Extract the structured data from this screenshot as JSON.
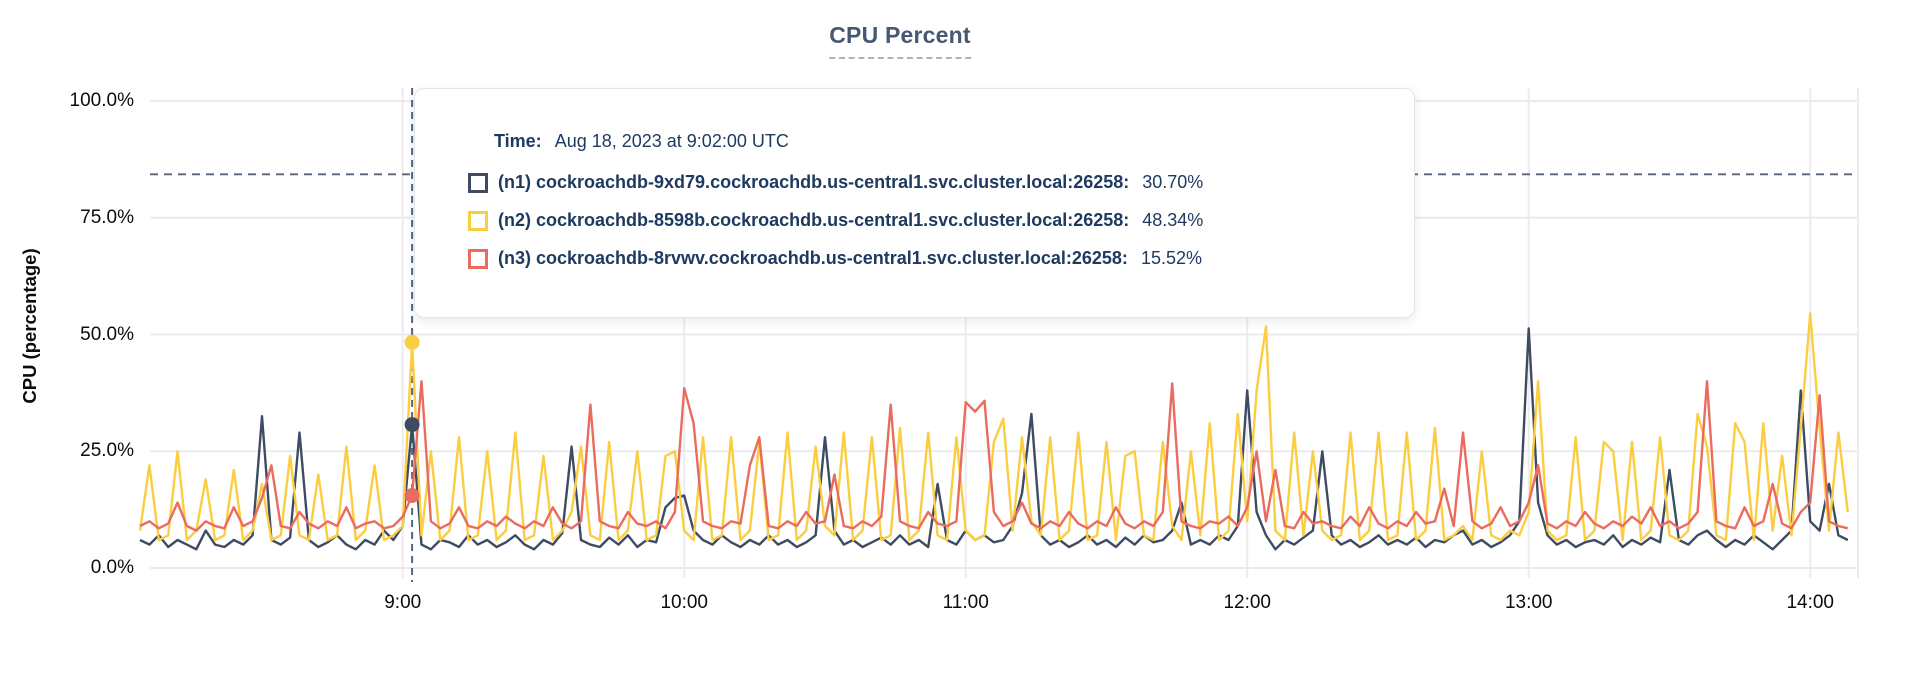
{
  "header": {
    "title": "CPU Percent"
  },
  "y_axis": {
    "title": "CPU (percentage)"
  },
  "tooltip": {
    "time_label": "Time:",
    "time_value": "Aug 18, 2023 at 9:02:00 UTC",
    "rows": [
      {
        "name": "(n1) cockroachdb-9xd79.cockroachdb.us-central1.svc.cluster.local:26258:",
        "value": "30.70%",
        "color": "#3e4c63"
      },
      {
        "name": "(n2) cockroachdb-8598b.cockroachdb.us-central1.svc.cluster.local:26258:",
        "value": "48.34%",
        "color": "#fbce42"
      },
      {
        "name": "(n3) cockroachdb-8rvwv.cockroachdb.us-central1.svc.cluster.local:26258:",
        "value": "15.52%",
        "color": "#ea6c5f"
      }
    ]
  },
  "chart_data": {
    "type": "line",
    "title": "CPU Percent",
    "xlabel": "",
    "ylabel": "CPU (percentage)",
    "ylim": [
      0,
      100
    ],
    "grid": true,
    "x_start_minutes": 484,
    "x_step_minutes": 2,
    "x_ticks": [
      {
        "minutes": 540,
        "label": "9:00"
      },
      {
        "minutes": 600,
        "label": "10:00"
      },
      {
        "minutes": 660,
        "label": "11:00"
      },
      {
        "minutes": 720,
        "label": "12:00"
      },
      {
        "minutes": 780,
        "label": "13:00"
      },
      {
        "minutes": 840,
        "label": "14:00"
      }
    ],
    "y_ticks": [
      {
        "value": 100,
        "label": "100.0%"
      },
      {
        "value": 75,
        "label": "75.0%"
      },
      {
        "value": 50,
        "label": "50.0%"
      },
      {
        "value": 25,
        "label": "25.0%"
      },
      {
        "value": 0,
        "label": "0.0%"
      }
    ],
    "threshold_dashed_line_pct": 84.3,
    "hover": {
      "minutes": 542,
      "time": "Aug 18, 2023 at 9:02:00 UTC",
      "values": [
        30.7,
        48.34,
        15.52
      ]
    },
    "series": [
      {
        "name": "(n1) cockroachdb-9xd79.cockroachdb.us-central1.svc.cluster.local:26258",
        "color": "#3e4c63",
        "values": [
          6,
          5,
          7,
          4.5,
          6,
          5,
          4,
          8,
          5,
          4.5,
          6,
          5,
          7,
          32.5,
          6,
          5,
          6.5,
          29,
          6,
          4.5,
          5.5,
          7,
          5,
          4,
          6,
          5,
          8,
          6,
          9,
          30.7,
          5,
          4,
          6,
          5.5,
          4.5,
          7,
          5,
          6,
          4.5,
          5.5,
          7,
          5,
          4,
          6,
          5,
          7.5,
          26,
          6,
          5,
          4.5,
          6.5,
          5,
          7,
          4.5,
          6,
          5.5,
          13,
          15,
          15.5,
          8,
          6,
          5,
          7,
          5.5,
          4.5,
          6,
          5,
          7,
          5,
          6,
          4.5,
          5.5,
          7,
          28,
          8,
          5,
          6,
          4.5,
          5.5,
          6.5,
          5,
          7,
          5,
          6,
          4.5,
          18,
          6,
          5,
          8,
          6,
          7,
          5.5,
          6,
          9,
          16,
          33,
          7,
          5,
          6,
          4.5,
          5.5,
          7,
          5,
          6,
          4.5,
          6.5,
          5,
          7,
          5.5,
          6,
          8,
          14,
          5,
          6,
          5,
          7,
          6,
          9,
          38,
          12,
          7,
          4,
          6,
          5,
          6.5,
          8,
          25,
          7,
          5,
          6,
          4.5,
          5.5,
          7,
          5,
          6,
          5,
          6.5,
          4.5,
          6,
          5.5,
          7,
          8,
          5,
          6,
          4.5,
          5.5,
          7,
          10,
          51.3,
          14,
          7,
          5,
          6,
          4.5,
          5.5,
          6,
          5,
          7,
          4.5,
          6,
          5,
          6.5,
          5.5,
          21,
          6,
          5,
          7,
          8,
          6,
          4.5,
          6,
          5,
          7,
          5.5,
          4,
          6,
          8,
          38,
          10,
          8,
          18,
          7,
          6
        ]
      },
      {
        "name": "(n2) cockroachdb-8598b.cockroachdb.us-central1.svc.cluster.local:26258",
        "color": "#fbce42",
        "values": [
          8,
          22,
          6,
          7,
          25,
          6,
          8,
          19,
          6,
          7,
          21,
          6,
          8,
          18,
          6,
          7,
          24,
          7,
          6,
          20,
          6,
          7,
          26,
          6,
          8,
          22,
          6,
          7,
          9,
          48.34,
          7,
          25,
          6,
          8,
          28,
          6,
          7,
          25,
          6,
          8,
          29,
          6,
          7,
          24,
          6,
          8,
          12,
          26,
          7,
          6,
          27,
          6,
          8,
          25,
          6,
          7,
          24,
          25,
          8,
          6,
          28,
          6,
          7,
          28,
          6,
          8,
          27,
          6,
          7,
          29,
          6,
          8,
          26,
          9,
          7,
          29,
          6,
          8,
          28,
          6,
          7,
          30,
          6,
          8,
          29,
          7,
          6,
          28,
          8,
          6,
          7,
          27,
          32,
          8,
          28,
          10,
          7,
          28,
          6,
          8,
          29,
          6,
          7,
          27,
          6,
          24,
          25,
          7,
          6,
          27,
          9,
          6,
          25,
          7,
          31,
          6,
          8,
          33,
          10,
          38,
          51.7,
          8,
          6,
          29,
          7,
          25,
          8,
          6,
          7,
          29,
          6,
          8,
          29,
          6,
          7,
          29,
          6,
          8,
          30,
          6,
          7,
          9,
          6,
          25,
          7,
          6,
          8,
          7,
          12,
          40,
          8,
          6,
          7,
          28,
          6,
          8,
          27,
          25,
          6,
          27,
          6,
          8,
          28,
          7,
          6,
          8,
          33,
          26,
          7,
          6,
          31,
          27,
          6,
          31,
          8,
          24,
          7,
          30,
          54.5,
          30,
          8,
          29,
          12
        ]
      },
      {
        "name": "(n3) cockroachdb-8rvwv.cockroachdb.us-central1.svc.cluster.local:26258",
        "color": "#ea6c5f",
        "values": [
          9,
          10,
          8.5,
          9.5,
          14,
          9,
          8,
          10,
          9,
          8.5,
          13,
          9,
          10,
          15,
          22,
          9,
          8.5,
          12,
          9.5,
          8.5,
          10,
          9,
          13,
          8.5,
          9.5,
          10,
          8.5,
          9,
          11,
          15.52,
          40,
          10,
          8.5,
          9.5,
          13,
          9,
          8.5,
          10,
          9,
          11,
          9.5,
          8.5,
          10,
          9,
          13,
          9.5,
          8.5,
          10,
          35,
          10,
          9,
          8.5,
          12,
          9.5,
          9,
          10,
          8.5,
          12,
          38.5,
          31,
          10,
          9,
          8.5,
          10,
          9.5,
          22,
          28,
          9,
          8.5,
          10,
          9,
          12,
          9.5,
          10,
          20,
          9,
          8.5,
          10,
          9,
          11,
          35,
          10,
          9,
          8.5,
          12,
          9.5,
          9,
          10,
          35.5,
          33.5,
          35.8,
          12,
          9,
          10,
          14,
          9.5,
          8.5,
          10,
          9,
          12,
          9.5,
          8.5,
          10,
          9,
          13,
          9.5,
          8.5,
          10,
          9,
          12,
          39.5,
          10,
          9,
          8.5,
          10,
          9.5,
          11,
          9,
          13,
          25,
          10,
          21,
          9,
          8.5,
          12,
          9.5,
          10,
          9,
          8.5,
          11,
          9,
          13,
          9.5,
          8.5,
          10,
          9,
          12,
          9.5,
          10,
          17,
          9,
          29,
          10,
          8.5,
          9.5,
          13,
          9,
          10,
          14,
          22,
          9.5,
          8.5,
          10,
          9,
          12,
          9.5,
          8.5,
          10,
          9,
          11,
          9.5,
          13,
          9,
          10,
          8.5,
          9.5,
          12,
          40,
          10,
          9,
          8.5,
          13,
          9,
          10,
          18,
          9.5,
          8.5,
          12,
          14,
          37,
          10,
          9,
          8.5
        ]
      }
    ]
  }
}
